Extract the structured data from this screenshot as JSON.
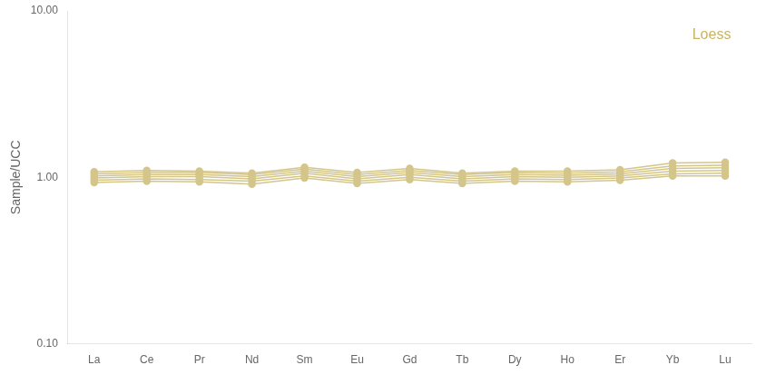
{
  "chart_data": {
    "type": "line",
    "categories": [
      "La",
      "Ce",
      "Pr",
      "Nd",
      "Sm",
      "Eu",
      "Gd",
      "Tb",
      "Dy",
      "Ho",
      "Er",
      "Yb",
      "Lu"
    ],
    "series": [
      {
        "color": "#D4C68A",
        "marker": "circle",
        "line_style": "solid",
        "values": [
          1.08,
          1.1,
          1.09,
          1.06,
          1.15,
          1.07,
          1.13,
          1.06,
          1.09,
          1.09,
          1.11,
          1.22,
          1.23
        ]
      },
      {
        "color": "#D4C68A",
        "marker": "circle",
        "line_style": "solid",
        "values": [
          1.05,
          1.07,
          1.07,
          1.04,
          1.12,
          1.04,
          1.1,
          1.04,
          1.07,
          1.06,
          1.08,
          1.17,
          1.18
        ]
      },
      {
        "color": "#D4C68A",
        "marker": "circle",
        "line_style": "solid",
        "values": [
          1.02,
          1.04,
          1.04,
          1.01,
          1.09,
          1.01,
          1.07,
          1.01,
          1.04,
          1.03,
          1.05,
          1.13,
          1.14
        ]
      },
      {
        "color": "#D4C68A",
        "marker": "circle",
        "line_style": "solid",
        "values": [
          0.99,
          1.01,
          1.01,
          0.98,
          1.06,
          0.98,
          1.04,
          0.98,
          1.01,
          1.0,
          1.02,
          1.09,
          1.1
        ]
      },
      {
        "color": "#D4C68A",
        "marker": "circle",
        "line_style": "solid",
        "values": [
          0.96,
          0.98,
          0.97,
          0.95,
          1.02,
          0.95,
          1.0,
          0.95,
          0.98,
          0.97,
          0.99,
          1.05,
          1.06
        ]
      },
      {
        "color": "#D4C68A",
        "marker": "circle",
        "line_style": "solid",
        "values": [
          0.93,
          0.95,
          0.94,
          0.91,
          0.99,
          0.92,
          0.97,
          0.92,
          0.95,
          0.94,
          0.96,
          1.02,
          1.02
        ]
      }
    ],
    "y_label": "Sample/UCC",
    "log": "y",
    "ylim": [
      0.1,
      10
    ],
    "yticks": [
      {
        "value": 0.1,
        "label": "0.10"
      },
      {
        "value": 1,
        "label": "1.00"
      },
      {
        "value": 10,
        "label": "10.00"
      }
    ],
    "grid": false,
    "annotations": [
      {
        "text": "Loess",
        "color": "#C8B460"
      }
    ]
  }
}
